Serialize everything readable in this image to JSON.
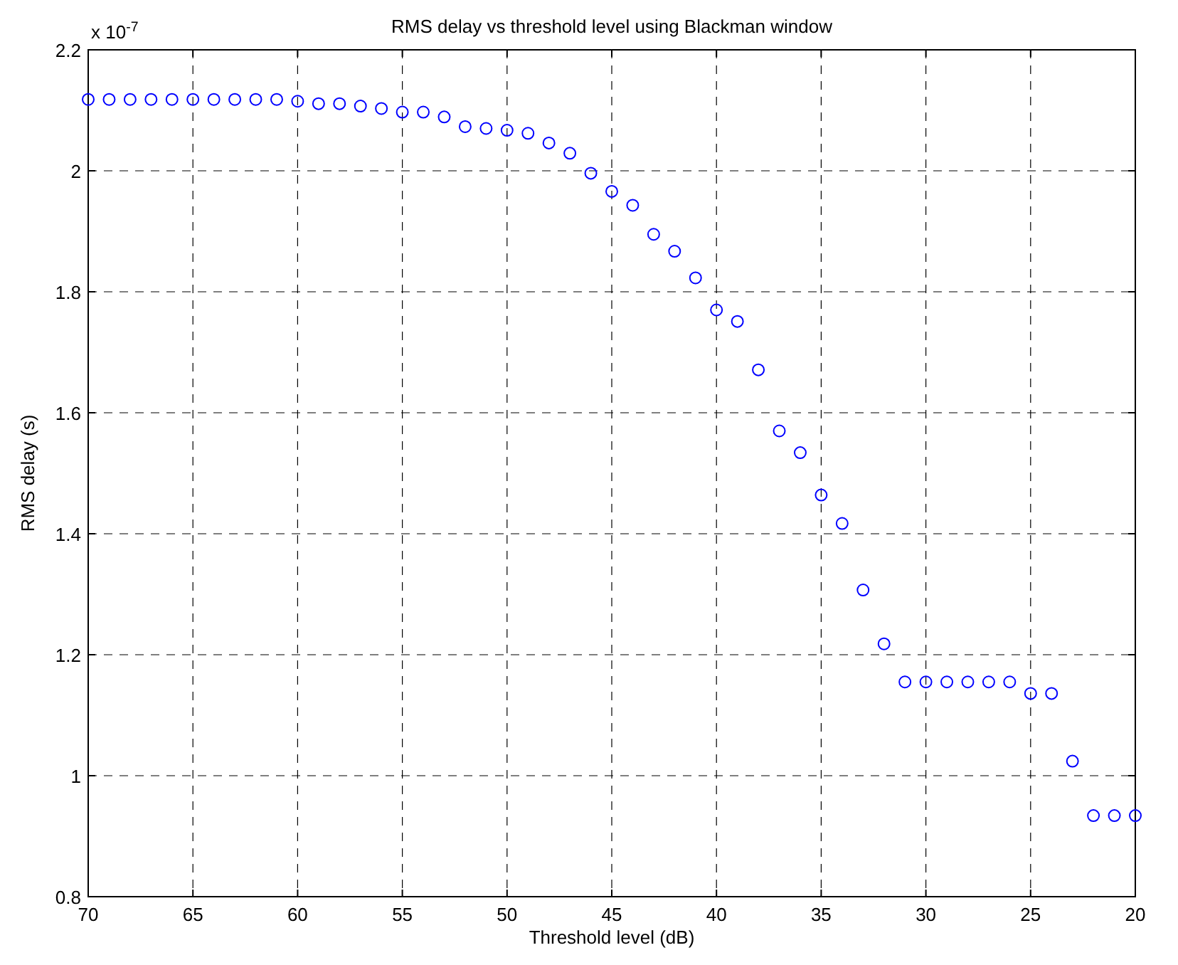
{
  "chart_data": {
    "type": "scatter",
    "title": "RMS delay vs threshold level using Blackman window",
    "xlabel": "Threshold level (dB)",
    "ylabel": "RMS delay (s)",
    "annotations": [
      "x 10$^{-7}$"
    ],
    "x": [
      70,
      69,
      68,
      67,
      66,
      65,
      64,
      63,
      62,
      61,
      60,
      59,
      58,
      57,
      56,
      55,
      54,
      53,
      52,
      51,
      50,
      49,
      48,
      47,
      46,
      45,
      44,
      43,
      42,
      41,
      40,
      39,
      38,
      37,
      36,
      35,
      34,
      33,
      32,
      31,
      30,
      29,
      28,
      27,
      26,
      25,
      24,
      23,
      22,
      21,
      20
    ],
    "series": [
      {
        "color": "#0000ff",
        "values": [
          2.118,
          2.118,
          2.118,
          2.118,
          2.118,
          2.118,
          2.118,
          2.118,
          2.118,
          2.118,
          2.115,
          2.111,
          2.111,
          2.107,
          2.103,
          2.097,
          2.097,
          2.089,
          2.073,
          2.07,
          2.067,
          2.062,
          2.046,
          2.029,
          1.996,
          1.966,
          1.943,
          1.895,
          1.867,
          1.823,
          1.77,
          1.751,
          1.671,
          1.57,
          1.534,
          1.464,
          1.417,
          1.307,
          1.218,
          1.155,
          1.155,
          1.155,
          1.155,
          1.155,
          1.155,
          1.136,
          1.136,
          1.024,
          0.934,
          0.934,
          0.934
        ]
      }
    ],
    "xlim": [
      70,
      20
    ],
    "xticks": [
      70,
      65,
      60,
      55,
      50,
      45,
      40,
      35,
      30,
      25,
      20
    ],
    "ylim": [
      0.8,
      2.2
    ],
    "yticks": [
      0.8,
      1,
      1.2,
      1.4,
      1.6,
      1.8,
      2,
      2.2
    ],
    "grid": true,
    "marker": "circle"
  }
}
